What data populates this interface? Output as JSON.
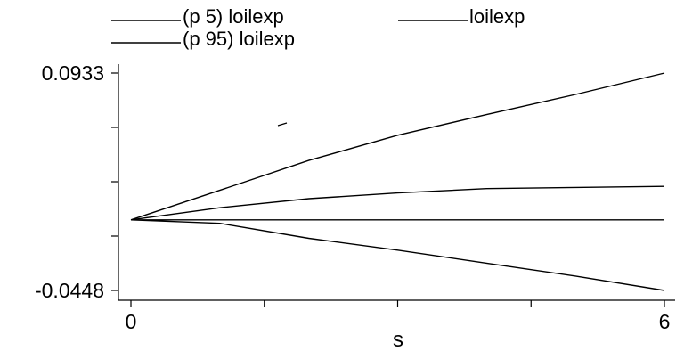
{
  "chart_data": {
    "type": "line",
    "title": "",
    "xlabel": "s",
    "ylabel": "",
    "xlim": [
      0,
      6
    ],
    "ylim": [
      -0.0448,
      0.0933
    ],
    "x_tick_labels": [
      "0",
      "6"
    ],
    "y_tick_labels": [
      "0.0933",
      "-0.0448"
    ],
    "grid": false,
    "legend_position": "top",
    "x": [
      0,
      1,
      2,
      3,
      4,
      5,
      6
    ],
    "series": [
      {
        "name": "(p 5) loilexp",
        "values": [
          0,
          -0.0022,
          -0.0117,
          -0.0192,
          -0.0275,
          -0.0357,
          -0.0448
        ]
      },
      {
        "name": "loilexp",
        "values": [
          0,
          0.0077,
          0.0135,
          0.0171,
          0.0199,
          0.0206,
          0.0213
        ]
      },
      {
        "name": "(p 95) loilexp",
        "values": [
          0,
          0.0188,
          0.0378,
          0.0538,
          0.0669,
          0.0797,
          0.0933
        ]
      },
      {
        "name": "",
        "values": [
          0,
          0,
          0,
          0,
          0,
          0,
          0
        ]
      }
    ]
  }
}
